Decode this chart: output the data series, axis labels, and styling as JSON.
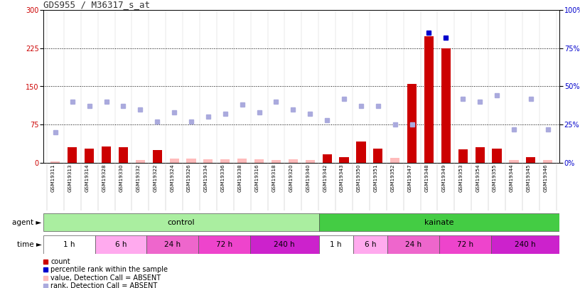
{
  "title": "GDS955 / M36317_s_at",
  "samples": [
    "GSM19311",
    "GSM19313",
    "GSM19314",
    "GSM19328",
    "GSM19330",
    "GSM19332",
    "GSM19322",
    "GSM19324",
    "GSM19326",
    "GSM19334",
    "GSM19336",
    "GSM19338",
    "GSM19316",
    "GSM19318",
    "GSM19320",
    "GSM19340",
    "GSM19342",
    "GSM19343",
    "GSM19350",
    "GSM19351",
    "GSM19352",
    "GSM19347",
    "GSM19348",
    "GSM19349",
    "GSM19353",
    "GSM19354",
    "GSM19355",
    "GSM19344",
    "GSM19345",
    "GSM19346"
  ],
  "count_values": [
    3,
    30,
    28,
    32,
    30,
    5,
    25,
    8,
    8,
    7,
    7,
    8,
    7,
    6,
    7,
    5,
    17,
    11,
    42,
    28,
    10,
    155,
    248,
    225,
    27,
    30,
    28,
    5,
    11,
    6
  ],
  "count_absent": [
    true,
    false,
    false,
    false,
    false,
    true,
    false,
    true,
    true,
    true,
    true,
    true,
    true,
    true,
    true,
    true,
    false,
    false,
    false,
    false,
    true,
    false,
    false,
    false,
    false,
    false,
    false,
    true,
    false,
    true
  ],
  "rank_values": [
    20,
    40,
    37,
    40,
    37,
    35,
    27,
    33,
    27,
    30,
    32,
    38,
    33,
    40,
    35,
    32,
    28,
    42,
    37,
    37,
    25,
    25,
    85,
    82,
    42,
    40,
    44,
    22,
    42,
    22
  ],
  "rank_absent": [
    true,
    true,
    true,
    true,
    true,
    true,
    true,
    true,
    true,
    true,
    true,
    true,
    true,
    true,
    true,
    true,
    true,
    true,
    true,
    true,
    true,
    true,
    false,
    false,
    true,
    true,
    true,
    true,
    true,
    true
  ],
  "ylim_left": [
    0,
    300
  ],
  "ylim_right": [
    0,
    100
  ],
  "yticks_left": [
    0,
    75,
    150,
    225,
    300
  ],
  "yticks_right": [
    0,
    25,
    50,
    75,
    100
  ],
  "background_color": "#ffffff",
  "bar_color_present": "#cc0000",
  "bar_color_absent": "#ffbbbb",
  "rank_color_present": "#0000cc",
  "rank_color_absent": "#aaaadd",
  "control_color": "#aaeea0",
  "kainate_color": "#44cc44",
  "time_colors": {
    "1 h": "#ffffff",
    "6 h": "#ffaaee",
    "24 h": "#ee66cc",
    "72 h": "#ee44cc",
    "240 h": "#cc22cc"
  },
  "time_segments": [
    [
      0,
      3,
      "1 h"
    ],
    [
      3,
      6,
      "6 h"
    ],
    [
      6,
      9,
      "24 h"
    ],
    [
      9,
      12,
      "72 h"
    ],
    [
      12,
      16,
      "240 h"
    ],
    [
      16,
      18,
      "1 h"
    ],
    [
      18,
      20,
      "6 h"
    ],
    [
      20,
      23,
      "24 h"
    ],
    [
      23,
      26,
      "72 h"
    ],
    [
      26,
      30,
      "240 h"
    ]
  ],
  "control_range": [
    0,
    16
  ],
  "kainate_range": [
    16,
    30
  ],
  "legend_items": [
    {
      "label": "count",
      "color": "#cc0000"
    },
    {
      "label": "percentile rank within the sample",
      "color": "#0000cc"
    },
    {
      "label": "value, Detection Call = ABSENT",
      "color": "#ffbbbb"
    },
    {
      "label": "rank, Detection Call = ABSENT",
      "color": "#aaaadd"
    }
  ]
}
